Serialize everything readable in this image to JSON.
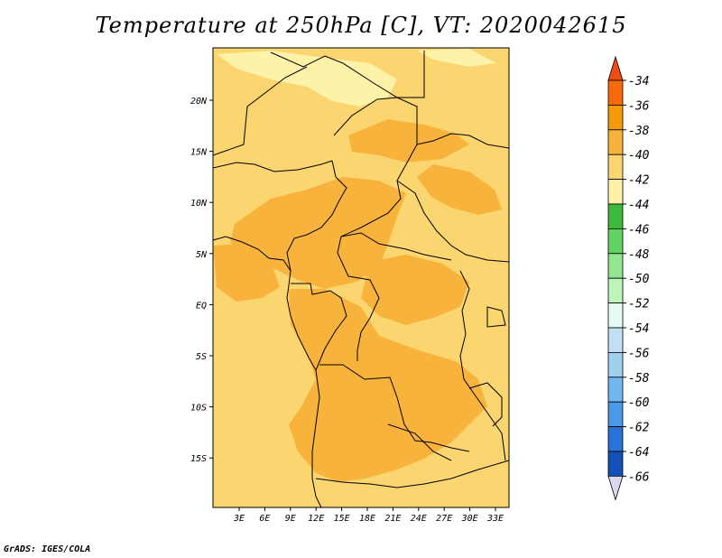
{
  "title": "Temperature at 250hPa [C], VT: 2020042615",
  "credit": "GrADS: IGES/COLA",
  "map": {
    "lon_ticks": [
      "3E",
      "6E",
      "9E",
      "12E",
      "15E",
      "18E",
      "21E",
      "24E",
      "27E",
      "30E",
      "33E"
    ],
    "lat_ticks": [
      "20N",
      "15N",
      "10N",
      "5N",
      "EQ",
      "5S",
      "10S",
      "15S"
    ]
  },
  "colorbar": {
    "labels": [
      "-34",
      "-36",
      "-38",
      "-40",
      "-42",
      "-44",
      "-46",
      "-48",
      "-50",
      "-52",
      "-54",
      "-56",
      "-58",
      "-60",
      "-62",
      "-64",
      "-66"
    ],
    "top_arrow_color": "#f04c13",
    "bottom_arrow_color": "#ddd8f0",
    "colors": [
      "#f76a0a",
      "#f79a0a",
      "#f7b33c",
      "#fbd56f",
      "#fdf2a8",
      "#3cbb3a",
      "#63d265",
      "#92e68f",
      "#bdf5b8",
      "#e3fbf4",
      "#c2e0f3",
      "#9fd0f2",
      "#73b7f0",
      "#4a98ea",
      "#2773d8",
      "#1252b8",
      "#0b1d6e"
    ]
  }
}
